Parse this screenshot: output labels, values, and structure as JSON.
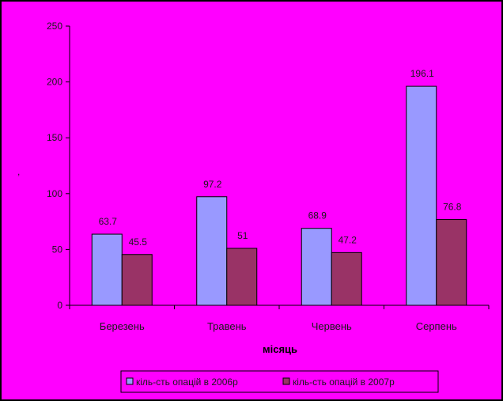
{
  "chart_data": {
    "type": "bar",
    "title": "",
    "xlabel": "місяць",
    "ylabel": ",",
    "ylim": [
      0,
      250
    ],
    "yticks": [
      0,
      50,
      100,
      150,
      200,
      250
    ],
    "grid": false,
    "legend_position": "bottom",
    "categories": [
      "Березень",
      "Травень",
      "Червень",
      "Серпень"
    ],
    "series": [
      {
        "name": "кіль-сть опацій в 2006р",
        "values": [
          63.7,
          97.2,
          68.9,
          196.1
        ],
        "labels": [
          "63.7",
          "97.2",
          "68.9",
          "196.1"
        ],
        "color": "#9999ff"
      },
      {
        "name": "кіль-сть опацій в 2007р",
        "values": [
          45.5,
          51,
          47.2,
          76.8
        ],
        "labels": [
          "45.5",
          "51",
          "47.2",
          "76.8"
        ],
        "color": "#993366"
      }
    ]
  },
  "colors": {
    "frame_background": "#ff00ff",
    "outer_background": "#000000"
  }
}
